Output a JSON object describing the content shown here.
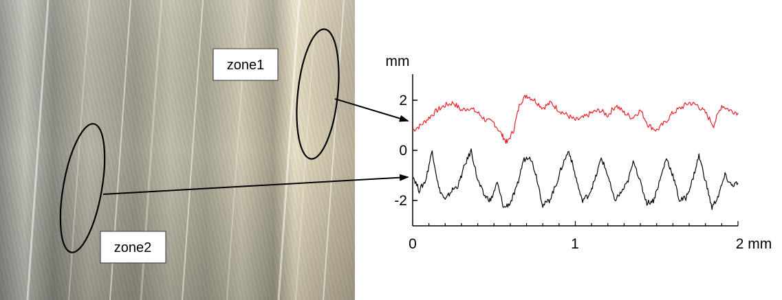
{
  "photo": {
    "annotations": [
      {
        "label": "zone1"
      },
      {
        "label": "zone2"
      }
    ]
  },
  "chart_data": {
    "type": "line",
    "title": "",
    "xlabel": "mm",
    "ylabel": "mm",
    "x_tick_labels": [
      "0",
      "1",
      "2 mm"
    ],
    "y_tick_labels": [
      "2",
      "0",
      "-2"
    ],
    "x_ticks": [
      0,
      1,
      2
    ],
    "y_ticks": [
      2,
      0,
      -2
    ],
    "xlim": [
      0,
      2
    ],
    "ylim": [
      -3.1,
      3.1
    ],
    "grid": false,
    "series": [
      {
        "color": "#e8202a",
        "x": [
          0,
          0.05,
          0.1,
          0.15,
          0.2,
          0.25,
          0.3,
          0.35,
          0.4,
          0.45,
          0.5,
          0.55,
          0.58,
          0.62,
          0.66,
          0.7,
          0.75,
          0.8,
          0.85,
          0.9,
          0.95,
          1.0,
          1.05,
          1.1,
          1.15,
          1.2,
          1.25,
          1.3,
          1.35,
          1.4,
          1.45,
          1.5,
          1.55,
          1.6,
          1.65,
          1.7,
          1.75,
          1.8,
          1.85,
          1.9,
          1.95,
          2.0
        ],
        "values": [
          0.8,
          1.0,
          1.3,
          1.6,
          1.8,
          1.9,
          1.6,
          1.7,
          1.5,
          1.2,
          1.1,
          0.6,
          0.3,
          0.8,
          1.9,
          2.2,
          2.0,
          1.7,
          1.9,
          1.6,
          1.4,
          1.2,
          1.3,
          1.5,
          1.6,
          1.4,
          1.8,
          1.5,
          1.3,
          1.6,
          1.0,
          0.8,
          1.1,
          1.5,
          1.7,
          1.9,
          1.8,
          1.5,
          1.0,
          1.8,
          1.6,
          1.5
        ]
      },
      {
        "color": "#000000",
        "x": [
          0,
          0.04,
          0.08,
          0.12,
          0.16,
          0.2,
          0.24,
          0.28,
          0.32,
          0.36,
          0.4,
          0.44,
          0.48,
          0.52,
          0.56,
          0.6,
          0.64,
          0.68,
          0.72,
          0.76,
          0.8,
          0.84,
          0.88,
          0.92,
          0.96,
          1.0,
          1.04,
          1.08,
          1.12,
          1.16,
          1.2,
          1.24,
          1.28,
          1.32,
          1.36,
          1.4,
          1.44,
          1.48,
          1.52,
          1.56,
          1.6,
          1.64,
          1.68,
          1.72,
          1.76,
          1.8,
          1.84,
          1.88,
          1.92,
          1.96,
          2.0
        ],
        "values": [
          -1.0,
          -1.6,
          -1.2,
          0.0,
          -1.5,
          -2.0,
          -1.6,
          -1.4,
          -0.6,
          0.0,
          -1.2,
          -1.8,
          -2.0,
          -1.3,
          -2.3,
          -2.1,
          -1.5,
          -0.4,
          -0.2,
          -1.0,
          -2.2,
          -2.0,
          -1.4,
          -0.6,
          0.0,
          -1.0,
          -2.0,
          -1.8,
          -1.2,
          -0.3,
          -1.0,
          -2.0,
          -1.7,
          -1.3,
          -0.4,
          -1.3,
          -2.1,
          -2.0,
          -1.2,
          -0.3,
          -1.0,
          -2.0,
          -1.9,
          -1.2,
          -0.2,
          -1.2,
          -2.3,
          -1.8,
          -1.0,
          -1.4,
          -1.3
        ]
      }
    ],
    "arrows": [
      {
        "from": "zone1",
        "to_series": 0
      },
      {
        "from": "zone2",
        "to_series": 1
      }
    ]
  }
}
